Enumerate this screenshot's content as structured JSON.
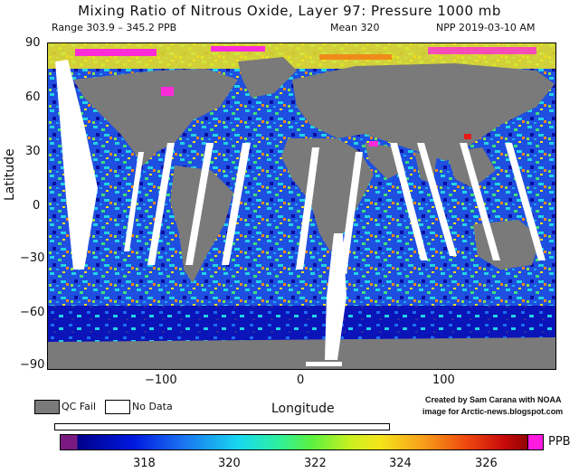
{
  "title": "Mixing Ratio of Nitrous Oxide, Layer 97: Pressure 1000 mb",
  "range_text": "Range 303.9 – 345.2 PPB",
  "mean_text": "Mean 320",
  "source_text": "NPP 2019-03-10 AM",
  "y_axis_label": "Latitude",
  "x_axis_label": "Longitude",
  "lat_ticks": [
    "90",
    "60",
    "30",
    "0",
    "−30",
    "−60",
    "−90"
  ],
  "lon_ticks": [
    "−100",
    "0",
    "100"
  ],
  "legend": {
    "qc_fail": "QC Fail",
    "no_data": "No Data",
    "qc_fail_color": "#7a7a7a",
    "no_data_color": "#ffffff"
  },
  "credit": {
    "line1": "Created by Sam Carana with NOAA",
    "line2": "image for Arctic-news.blogspot.com"
  },
  "colorbar": {
    "unit": "PPB",
    "ticks": [
      "318",
      "320",
      "322",
      "324",
      "326"
    ],
    "min": 316.6,
    "max": 326.9
  }
}
